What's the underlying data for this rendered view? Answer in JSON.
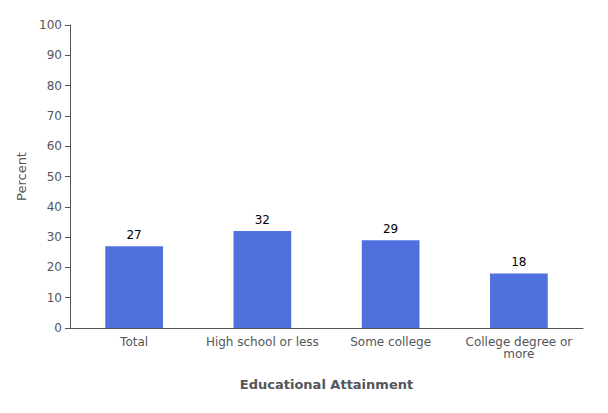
{
  "chart_data": {
    "type": "bar",
    "categories": [
      "Total",
      "High school or less",
      "Some college",
      "College degree or\nmore"
    ],
    "values": [
      27,
      32,
      29,
      18
    ],
    "xlabel": "Educational Attainment",
    "ylabel": "Percent",
    "ylim": [
      0,
      100
    ],
    "yticks": [
      0,
      10,
      20,
      30,
      40,
      50,
      60,
      70,
      80,
      90,
      100
    ],
    "grid": false,
    "data_labels": true
  }
}
